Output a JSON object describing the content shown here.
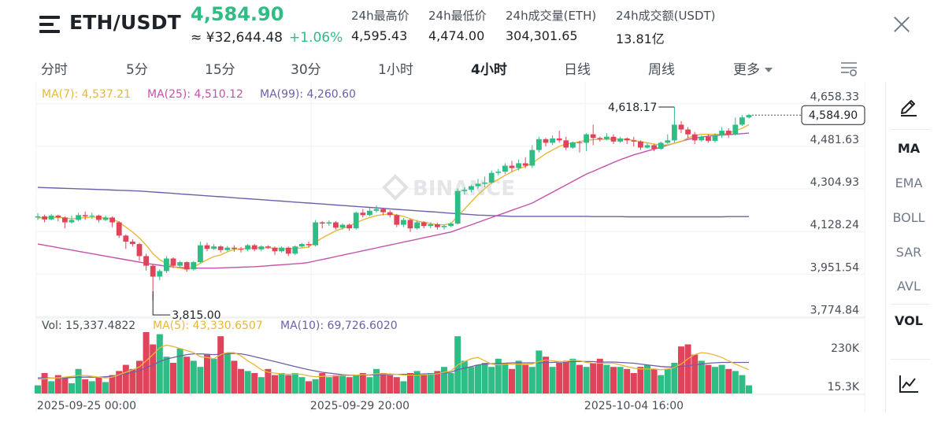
{
  "header": {
    "pair": "ETH/USDT",
    "last_price": "4,584.90",
    "cny_price": "≈ ¥32,644.48",
    "change": "+1.06%",
    "stats": [
      {
        "label": "24h最高价",
        "value": "4,595.43"
      },
      {
        "label": "24h最低价",
        "value": "4,474.00"
      },
      {
        "label": "24h成交量(ETH)",
        "value": "304,301.65"
      },
      {
        "label": "24h成交额(USDT)",
        "value": "13.81亿"
      }
    ]
  },
  "tabs": [
    "分时",
    "5分",
    "15分",
    "30分",
    "1小时",
    "4小时",
    "日线",
    "周线",
    "更多"
  ],
  "active_tab": "4小时",
  "side_tools": [
    "MA",
    "EMA",
    "BOLL",
    "SAR",
    "AVL",
    "VOL"
  ],
  "active_side": [
    "MA",
    "VOL"
  ],
  "icons": [
    "menu-icon",
    "close-icon",
    "chart-settings-icon",
    "pencil-icon",
    "line-chart-icon"
  ],
  "colors": {
    "up": "#2ebd85",
    "down": "#e0445a",
    "ma7": "#e6b838",
    "ma25": "#c552a7",
    "ma99": "#6f5fa8",
    "vol_ma5": "#e6b838",
    "vol_ma10": "#6f5fa8"
  },
  "chart_data": {
    "type": "candlestick",
    "interval": "4小时",
    "watermark": "BINANCE",
    "ma_legend": [
      {
        "name": "MA(7)",
        "value": "4,537.21"
      },
      {
        "name": "MA(25)",
        "value": "4,510.12"
      },
      {
        "name": "MA(99)",
        "value": "4,260.60"
      }
    ],
    "price_axis": {
      "ticks": [
        "4,658.33",
        "4,481.63",
        "4,304.93",
        "4,128.24",
        "3,951.54",
        "3,774.84"
      ],
      "range": [
        3750,
        4690
      ]
    },
    "current_price_label": "4,584.90",
    "high_marker": "4,618.17",
    "low_marker": "3,815.00",
    "vol_legend": [
      {
        "name": "Vol",
        "value": "15,337.4822"
      },
      {
        "name": "MA(5)",
        "value": "43,330.6507"
      },
      {
        "name": "MA(10)",
        "value": "69,726.6020"
      }
    ],
    "vol_axis": {
      "ticks": [
        "230K",
        "15.3K"
      ]
    },
    "time_labels": [
      "2025-09-25 00:00",
      "2025-09-29 20:00",
      "2025-10-04 16:00"
    ],
    "candles": [
      [
        4160,
        4165,
        4150,
        4178
      ],
      [
        4165,
        4152,
        4140,
        4172
      ],
      [
        4152,
        4168,
        4148,
        4175
      ],
      [
        4168,
        4160,
        4145,
        4172
      ],
      [
        4160,
        4140,
        4115,
        4165
      ],
      [
        4140,
        4150,
        4135,
        4168
      ],
      [
        4150,
        4170,
        4145,
        4180
      ],
      [
        4170,
        4165,
        4150,
        4185
      ],
      [
        4165,
        4168,
        4155,
        4180
      ],
      [
        4168,
        4150,
        4140,
        4172
      ],
      [
        4150,
        4160,
        4145,
        4168
      ],
      [
        4160,
        4140,
        4120,
        4165
      ],
      [
        4140,
        4085,
        4075,
        4145
      ],
      [
        4085,
        4060,
        4030,
        4090
      ],
      [
        4060,
        4050,
        4040,
        4070
      ],
      [
        4050,
        4000,
        3980,
        4055
      ],
      [
        4000,
        3960,
        3940,
        4010
      ],
      [
        3960,
        3915,
        3815,
        3965
      ],
      [
        3915,
        3938,
        3900,
        3945
      ],
      [
        3938,
        3990,
        3930,
        4000
      ],
      [
        3990,
        3960,
        3950,
        3995
      ],
      [
        3960,
        3975,
        3955,
        3980
      ],
      [
        3975,
        3945,
        3935,
        3978
      ],
      [
        3945,
        3975,
        3940,
        3980
      ],
      [
        3975,
        4045,
        3970,
        4060
      ],
      [
        4045,
        4030,
        4020,
        4055
      ],
      [
        4030,
        4040,
        4025,
        4050
      ],
      [
        4040,
        4025,
        4015,
        4045
      ],
      [
        4025,
        4035,
        4020,
        4042
      ],
      [
        4035,
        4030,
        4018,
        4045
      ],
      [
        4030,
        4028,
        4015,
        4038
      ],
      [
        4028,
        4045,
        4020,
        4050
      ],
      [
        4045,
        4028,
        4020,
        4050
      ],
      [
        4028,
        4040,
        4020,
        4045
      ],
      [
        4040,
        4035,
        4030,
        4045
      ],
      [
        4035,
        4020,
        4005,
        4040
      ],
      [
        4020,
        4035,
        4015,
        4040
      ],
      [
        4035,
        4010,
        4000,
        4040
      ],
      [
        4010,
        4040,
        4005,
        4045
      ],
      [
        4040,
        4050,
        4035,
        4055
      ],
      [
        4050,
        4045,
        4035,
        4060
      ],
      [
        4045,
        4140,
        4040,
        4150
      ],
      [
        4140,
        4135,
        4115,
        4145
      ],
      [
        4135,
        4140,
        4125,
        4148
      ],
      [
        4140,
        4118,
        4110,
        4145
      ],
      [
        4118,
        4130,
        4110,
        4135
      ],
      [
        4130,
        4115,
        4105,
        4135
      ],
      [
        4115,
        4180,
        4110,
        4185
      ],
      [
        4180,
        4170,
        4160,
        4195
      ],
      [
        4170,
        4188,
        4165,
        4200
      ],
      [
        4188,
        4195,
        4180,
        4210
      ],
      [
        4195,
        4182,
        4170,
        4200
      ],
      [
        4182,
        4170,
        4160,
        4190
      ],
      [
        4170,
        4130,
        4120,
        4175
      ],
      [
        4130,
        4150,
        4120,
        4158
      ],
      [
        4150,
        4115,
        4100,
        4155
      ],
      [
        4115,
        4140,
        4110,
        4150
      ],
      [
        4140,
        4125,
        4115,
        4145
      ],
      [
        4125,
        4132,
        4115,
        4140
      ],
      [
        4132,
        4120,
        4110,
        4138
      ],
      [
        4120,
        4125,
        4110,
        4130
      ],
      [
        4125,
        4135,
        4120,
        4140
      ],
      [
        4135,
        4270,
        4130,
        4280
      ],
      [
        4270,
        4275,
        4255,
        4285
      ],
      [
        4275,
        4290,
        4265,
        4295
      ],
      [
        4290,
        4300,
        4280,
        4320
      ],
      [
        4300,
        4305,
        4285,
        4330
      ],
      [
        4305,
        4345,
        4300,
        4355
      ],
      [
        4345,
        4350,
        4335,
        4362
      ],
      [
        4350,
        4375,
        4340,
        4385
      ],
      [
        4375,
        4365,
        4350,
        4395
      ],
      [
        4365,
        4385,
        4355,
        4400
      ],
      [
        4385,
        4375,
        4365,
        4410
      ],
      [
        4375,
        4440,
        4365,
        4460
      ],
      [
        4440,
        4485,
        4430,
        4495
      ],
      [
        4485,
        4470,
        4455,
        4490
      ],
      [
        4470,
        4488,
        4460,
        4500
      ],
      [
        4488,
        4480,
        4470,
        4520
      ],
      [
        4480,
        4450,
        4440,
        4495
      ],
      [
        4450,
        4472,
        4445,
        4475
      ],
      [
        4472,
        4470,
        4430,
        4478
      ],
      [
        4470,
        4505,
        4435,
        4510
      ],
      [
        4505,
        4490,
        4460,
        4545
      ],
      [
        4490,
        4485,
        4475,
        4495
      ],
      [
        4485,
        4495,
        4480,
        4510
      ],
      [
        4495,
        4475,
        4465,
        4505
      ],
      [
        4475,
        4488,
        4470,
        4495
      ],
      [
        4488,
        4480,
        4465,
        4492
      ],
      [
        4480,
        4475,
        4455,
        4495
      ],
      [
        4475,
        4450,
        4440,
        4480
      ],
      [
        4450,
        4460,
        4445,
        4470
      ],
      [
        4460,
        4445,
        4435,
        4465
      ],
      [
        4445,
        4470,
        4440,
        4475
      ],
      [
        4470,
        4480,
        4465,
        4505
      ],
      [
        4480,
        4545,
        4470,
        4618
      ],
      [
        4545,
        4525,
        4510,
        4560
      ],
      [
        4525,
        4505,
        4490,
        4535
      ],
      [
        4505,
        4480,
        4465,
        4515
      ],
      [
        4480,
        4495,
        4475,
        4500
      ],
      [
        4495,
        4478,
        4470,
        4505
      ],
      [
        4478,
        4500,
        4470,
        4510
      ],
      [
        4500,
        4520,
        4490,
        4535
      ],
      [
        4520,
        4505,
        4490,
        4530
      ],
      [
        4505,
        4545,
        4500,
        4575
      ],
      [
        4545,
        4575,
        4540,
        4585
      ],
      [
        4575,
        4585,
        4570,
        4590
      ]
    ],
    "ma7": [
      4158,
      4160,
      4160,
      4161,
      4158,
      4155,
      4157,
      4160,
      4162,
      4161,
      4158,
      4155,
      4140,
      4120,
      4100,
      4075,
      4045,
      4010,
      3985,
      3970,
      3955,
      3950,
      3945,
      3955,
      3970,
      3985,
      3998,
      4005,
      4018,
      4028,
      4030,
      4032,
      4035,
      4033,
      4035,
      4032,
      4030,
      4030,
      4032,
      4034,
      4038,
      4058,
      4075,
      4090,
      4105,
      4115,
      4125,
      4138,
      4150,
      4160,
      4168,
      4172,
      4175,
      4170,
      4165,
      4155,
      4145,
      4140,
      4135,
      4130,
      4130,
      4135,
      4165,
      4195,
      4225,
      4255,
      4280,
      4305,
      4318,
      4335,
      4350,
      4362,
      4372,
      4385,
      4405,
      4425,
      4440,
      4455,
      4465,
      4468,
      4475,
      4480,
      4483,
      4484,
      4484,
      4486,
      4485,
      4484,
      4480,
      4475,
      4470,
      4465,
      4460,
      4462,
      4468,
      4475,
      4490,
      4500,
      4505,
      4505,
      4505,
      4505,
      4510,
      4520,
      4530,
      4545
    ],
    "ma25": [
      4050,
      4045,
      4040,
      4035,
      4030,
      4025,
      4020,
      4015,
      4010,
      4005,
      4000,
      3995,
      3990,
      3985,
      3980,
      3975,
      3970,
      3966,
      3962,
      3958,
      3955,
      3953,
      3951,
      3950,
      3950,
      3950,
      3950,
      3951,
      3952,
      3953,
      3954,
      3955,
      3956,
      3958,
      3960,
      3962,
      3964,
      3966,
      3968,
      3970,
      3974,
      3980,
      3986,
      3992,
      3998,
      4004,
      4010,
      4016,
      4022,
      4028,
      4034,
      4040,
      4046,
      4052,
      4058,
      4064,
      4070,
      4076,
      4082,
      4088,
      4094,
      4100,
      4110,
      4120,
      4130,
      4140,
      4150,
      4160,
      4170,
      4180,
      4190,
      4200,
      4210,
      4220,
      4235,
      4250,
      4265,
      4280,
      4295,
      4310,
      4325,
      4340,
      4352,
      4364,
      4376,
      4388,
      4400,
      4410,
      4420,
      4428,
      4436,
      4444,
      4452,
      4460,
      4468,
      4476,
      4484,
      4490,
      4494,
      4497,
      4500,
      4502,
      4504,
      4506,
      4508,
      4510
    ],
    "ma99": [
      4285,
      4284,
      4283,
      4282,
      4281,
      4280,
      4279,
      4278,
      4277,
      4276,
      4275,
      4274,
      4273,
      4272,
      4271,
      4270,
      4268,
      4266,
      4264,
      4262,
      4260,
      4258,
      4256,
      4254,
      4252,
      4250,
      4248,
      4246,
      4244,
      4242,
      4240,
      4238,
      4236,
      4234,
      4232,
      4230,
      4228,
      4226,
      4224,
      4222,
      4220,
      4218,
      4216,
      4214,
      4212,
      4210,
      4208,
      4206,
      4204,
      4202,
      4200,
      4198,
      4196,
      4194,
      4192,
      4190,
      4188,
      4186,
      4184,
      4182,
      4180,
      4178,
      4176,
      4174,
      4172,
      4170,
      4169,
      4168,
      4167,
      4166,
      4165,
      4165,
      4165,
      4165,
      4165,
      4165,
      4165,
      4165,
      4165,
      4165,
      4165,
      4165,
      4164,
      4164,
      4164,
      4164,
      4164,
      4163,
      4163,
      4163,
      4163,
      4163,
      4163,
      4163,
      4163,
      4163,
      4163,
      4163,
      4163,
      4163,
      4163,
      4163,
      4164,
      4164,
      4164,
      4164
    ],
    "volumes": [
      20,
      50,
      30,
      45,
      40,
      25,
      60,
      35,
      30,
      40,
      28,
      45,
      55,
      70,
      60,
      80,
      150,
      120,
      145,
      90,
      75,
      110,
      90,
      80,
      65,
      95,
      85,
      140,
      100,
      80,
      60,
      55,
      50,
      40,
      60,
      45,
      50,
      45,
      50,
      40,
      30,
      35,
      50,
      40,
      45,
      45,
      40,
      45,
      50,
      40,
      60,
      50,
      45,
      40,
      30,
      50,
      55,
      45,
      50,
      55,
      65,
      50,
      140,
      80,
      65,
      70,
      75,
      65,
      85,
      75,
      60,
      80,
      70,
      65,
      105,
      90,
      65,
      75,
      80,
      85,
      70,
      65,
      75,
      85,
      70,
      65,
      65,
      60,
      50,
      65,
      70,
      60,
      45,
      60,
      75,
      115,
      120,
      95,
      80,
      70,
      65,
      70,
      60,
      55,
      45,
      20
    ],
    "vol_ma5": [
      35,
      36,
      38,
      38,
      40,
      42,
      44,
      44,
      42,
      40,
      38,
      40,
      46,
      52,
      58,
      65,
      80,
      95,
      112,
      118,
      115,
      110,
      105,
      100,
      90,
      88,
      85,
      95,
      100,
      100,
      92,
      80,
      70,
      58,
      52,
      50,
      48,
      47,
      48,
      47,
      43,
      41,
      42,
      43,
      43,
      44,
      44,
      45,
      46,
      46,
      48,
      48,
      48,
      47,
      45,
      45,
      45,
      46,
      47,
      48,
      52,
      55,
      70,
      78,
      85,
      88,
      80,
      72,
      70,
      72,
      72,
      72,
      72,
      72,
      78,
      82,
      80,
      78,
      78,
      82,
      80,
      76,
      74,
      74,
      74,
      74,
      70,
      66,
      62,
      60,
      60,
      60,
      58,
      60,
      64,
      72,
      85,
      95,
      100,
      98,
      94,
      88,
      80,
      72,
      65,
      58
    ],
    "vol_ma10": [
      38,
      38,
      38,
      38,
      38,
      39,
      40,
      40,
      40,
      40,
      41,
      42,
      45,
      48,
      52,
      56,
      63,
      70,
      78,
      84,
      88,
      92,
      95,
      97,
      97,
      96,
      95,
      96,
      97,
      98,
      97,
      94,
      90,
      86,
      82,
      78,
      74,
      70,
      66,
      62,
      58,
      55,
      52,
      50,
      48,
      46,
      45,
      45,
      45,
      45,
      46,
      46,
      47,
      47,
      47,
      47,
      47,
      48,
      48,
      49,
      50,
      52,
      58,
      62,
      66,
      70,
      72,
      73,
      73,
      74,
      75,
      75,
      75,
      75,
      75,
      76,
      76,
      77,
      77,
      78,
      78,
      78,
      78,
      77,
      77,
      77,
      76,
      75,
      74,
      72,
      70,
      68,
      66,
      65,
      65,
      66,
      68,
      70,
      72,
      74,
      75,
      76,
      76,
      76,
      76,
      76
    ]
  }
}
